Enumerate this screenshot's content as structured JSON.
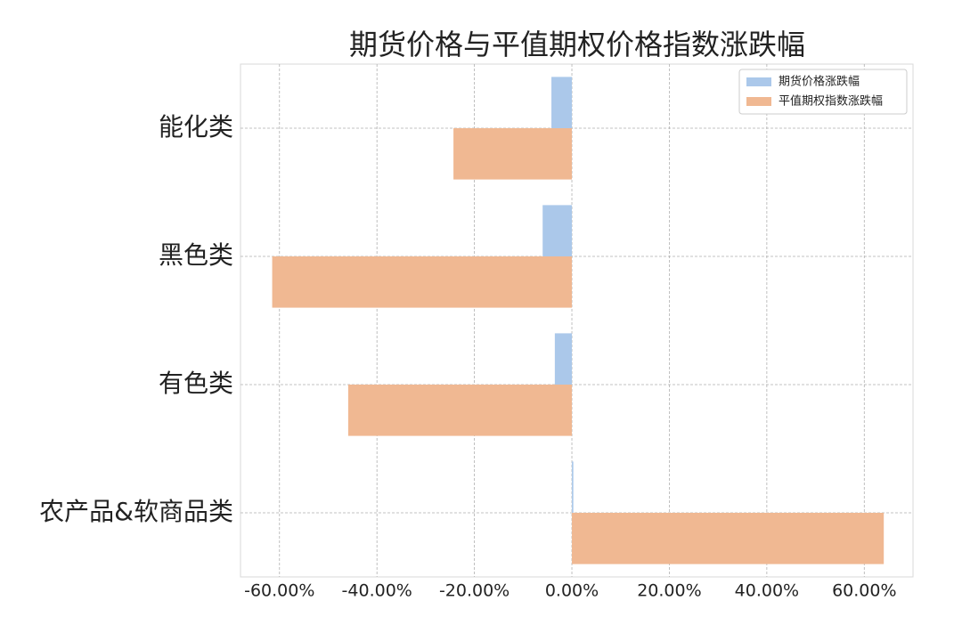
{
  "chart_data": {
    "type": "barh",
    "title": "期货价格与平值期权价格指数涨跌幅",
    "categories": [
      "能化类",
      "黑色类",
      "有色类",
      "农产品&软商品类"
    ],
    "series": [
      {
        "name": "期货价格涨跌幅",
        "color": "#abc8ea",
        "values": [
          -4.2,
          -6.0,
          -3.5,
          0.3
        ]
      },
      {
        "name": "平值期权指数涨跌幅",
        "color": "#f0b892",
        "values": [
          -24.3,
          -61.5,
          -45.9,
          64.0
        ]
      }
    ],
    "xlim": [
      -68,
      70
    ],
    "xticks": [
      {
        "value": -60,
        "label": "-60.00%"
      },
      {
        "value": -40,
        "label": "-40.00%"
      },
      {
        "value": -20,
        "label": "-20.00%"
      },
      {
        "value": 0,
        "label": "0.00%"
      },
      {
        "value": 20,
        "label": "20.00%"
      },
      {
        "value": 40,
        "label": "40.00%"
      },
      {
        "value": 60,
        "label": "60.00%"
      }
    ],
    "grid": true,
    "legend": "upper right"
  }
}
